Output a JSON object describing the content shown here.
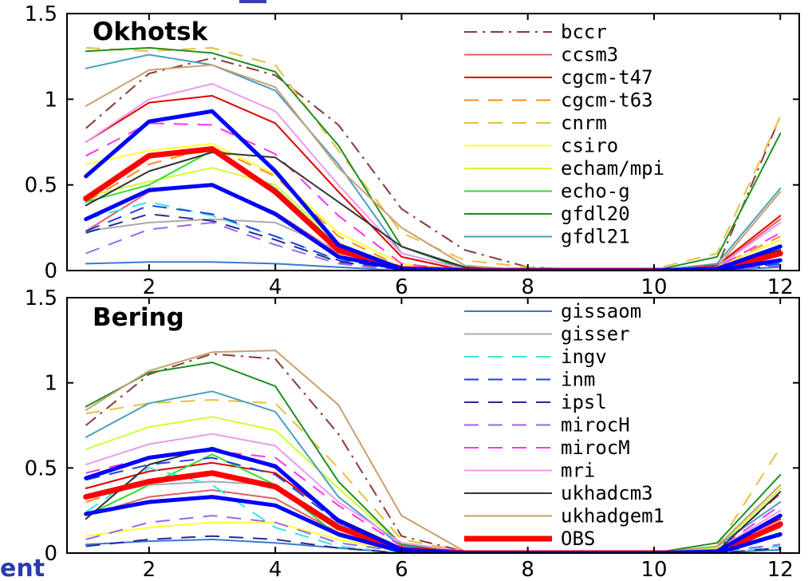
{
  "corner_text": "ent",
  "top_fragment_color": "#3b3fb0",
  "chart_data": [
    {
      "type": "line",
      "title": "Okhotsk",
      "xlabel": "",
      "ylabel": "",
      "xlim": [
        0.7,
        12.3
      ],
      "ylim": [
        0,
        1.5
      ],
      "xticks": [
        2,
        4,
        6,
        8,
        10,
        12
      ],
      "yticks": [
        0,
        0.5,
        1,
        1.5
      ],
      "x": [
        1,
        2,
        3,
        4,
        5,
        6,
        7,
        8,
        9,
        10,
        11,
        12
      ],
      "legend_position": "top-right",
      "series": [
        {
          "name": "bccr",
          "color": "#8b3a3a",
          "dash": "dashdot",
          "width": 2,
          "values": [
            0.83,
            1.15,
            1.24,
            1.14,
            0.85,
            0.36,
            0.12,
            0.02,
            0,
            0,
            0.02,
            0.9
          ]
        },
        {
          "name": "ccsm3",
          "color": "#e06060",
          "dash": "solid",
          "width": 2,
          "values": [
            0.23,
            0.46,
            0.5,
            0.34,
            0.1,
            0.02,
            0,
            0,
            0,
            0,
            0.02,
            0.3
          ]
        },
        {
          "name": "cgcm-t47",
          "color": "#e00000",
          "dash": "solid",
          "width": 2,
          "values": [
            0.75,
            0.98,
            1.02,
            0.86,
            0.46,
            0.08,
            0,
            0,
            0,
            0,
            0.03,
            0.32
          ]
        },
        {
          "name": "cgcm-t63",
          "color": "#ff8c1a",
          "dash": "dashed",
          "width": 2,
          "values": [
            0.4,
            0.62,
            0.72,
            0.55,
            0.2,
            0.02,
            0,
            0,
            0,
            0,
            0.02,
            0.2
          ]
        },
        {
          "name": "cnrm",
          "color": "#e6c040",
          "dash": "dashed",
          "width": 2,
          "values": [
            1.3,
            1.28,
            1.3,
            1.2,
            0.7,
            0.22,
            0.06,
            0.02,
            0,
            0.01,
            0.1,
            0.9
          ]
        },
        {
          "name": "csiro",
          "color": "#ffff33",
          "dash": "solid",
          "width": 2,
          "values": [
            0.62,
            0.7,
            0.74,
            0.56,
            0.22,
            0.04,
            0,
            0,
            0,
            0,
            0.02,
            0.18
          ]
        },
        {
          "name": "echam/mpi",
          "color": "#ccff33",
          "dash": "solid",
          "width": 2,
          "values": [
            0.43,
            0.52,
            0.6,
            0.5,
            0.16,
            0.02,
            0,
            0,
            0,
            0,
            0.01,
            0.15
          ]
        },
        {
          "name": "echo-g",
          "color": "#33dd33",
          "dash": "solid",
          "width": 2,
          "values": [
            0.4,
            0.5,
            0.7,
            0.48,
            0.14,
            0.02,
            0,
            0,
            0,
            0,
            0.01,
            0.12
          ]
        },
        {
          "name": "gfdl20",
          "color": "#1f8f1f",
          "dash": "solid",
          "width": 2,
          "values": [
            1.28,
            1.3,
            1.27,
            1.16,
            0.73,
            0.14,
            0.01,
            0,
            0,
            0,
            0.08,
            0.8
          ]
        },
        {
          "name": "gfdl21",
          "color": "#4a9fbf",
          "dash": "solid",
          "width": 2,
          "values": [
            1.18,
            1.26,
            1.2,
            1.05,
            0.62,
            0.1,
            0.01,
            0,
            0,
            0,
            0.04,
            0.48
          ]
        },
        {
          "name": "gissaom",
          "color": "#3a78d0",
          "dash": "solid",
          "width": 2,
          "values": [
            0.04,
            0.05,
            0.05,
            0.04,
            0.02,
            0,
            0,
            0,
            0,
            0,
            0,
            0.02
          ]
        },
        {
          "name": "gisser",
          "color": "#aaaaaa",
          "dash": "solid",
          "width": 2,
          "values": [
            0.23,
            0.28,
            0.3,
            0.28,
            0.12,
            0.02,
            0,
            0,
            0,
            0,
            0.01,
            0.05
          ]
        },
        {
          "name": "ingv",
          "color": "#33e6e6",
          "dash": "dashed",
          "width": 2,
          "values": [
            0.3,
            0.4,
            0.32,
            0.2,
            0.06,
            0.01,
            0,
            0,
            0,
            0,
            0,
            0.05
          ]
        },
        {
          "name": "inm",
          "color": "#2040e0",
          "dash": "dashed",
          "width": 2,
          "values": [
            0.23,
            0.38,
            0.33,
            0.2,
            0.06,
            0.01,
            0,
            0,
            0,
            0,
            0,
            0.04
          ]
        },
        {
          "name": "ipsl",
          "color": "#2a2a90",
          "dash": "dashed",
          "width": 2,
          "values": [
            0.22,
            0.33,
            0.29,
            0.18,
            0.05,
            0.01,
            0,
            0,
            0,
            0,
            0,
            0.03
          ]
        },
        {
          "name": "mirocH",
          "color": "#9966ee",
          "dash": "dashed",
          "width": 2,
          "values": [
            0.1,
            0.24,
            0.28,
            0.15,
            0.04,
            0,
            0,
            0,
            0,
            0,
            0,
            0.03
          ]
        },
        {
          "name": "mirocM",
          "color": "#ff33ee",
          "dash": "dashed",
          "width": 2,
          "values": [
            0.67,
            0.86,
            0.85,
            0.68,
            0.32,
            0.04,
            0,
            0,
            0,
            0,
            0.02,
            0.22
          ]
        },
        {
          "name": "mri",
          "color": "#ee99ee",
          "dash": "solid",
          "width": 2,
          "values": [
            0.75,
            1.0,
            1.09,
            0.93,
            0.5,
            0.1,
            0.01,
            0,
            0,
            0,
            0.02,
            0.28
          ]
        },
        {
          "name": "ukhadcm3",
          "color": "#333333",
          "dash": "solid",
          "width": 2,
          "values": [
            0.38,
            0.58,
            0.69,
            0.66,
            0.4,
            0.14,
            0.02,
            0,
            0,
            0,
            0.01,
            0.12
          ]
        },
        {
          "name": "ukhadgem1",
          "color": "#c9a070",
          "dash": "solid",
          "width": 2,
          "values": [
            0.96,
            1.17,
            1.2,
            1.07,
            0.6,
            0.25,
            0.03,
            0,
            0,
            0,
            0.02,
            0.46
          ]
        },
        {
          "name": "OBS",
          "color": "#ff0000",
          "dash": "solid",
          "width": 7,
          "values": [
            0.42,
            0.67,
            0.71,
            0.46,
            0.12,
            0.01,
            0,
            0,
            0,
            0,
            0,
            0.1
          ]
        },
        {
          "name": "",
          "color": "#0000ff",
          "dash": "solid",
          "width": 5,
          "values": [
            0.55,
            0.87,
            0.93,
            0.58,
            0.15,
            0.01,
            0,
            0,
            0,
            0,
            0.01,
            0.14
          ]
        },
        {
          "name": "",
          "color": "#0000ff",
          "dash": "solid",
          "width": 5,
          "values": [
            0.3,
            0.47,
            0.5,
            0.33,
            0.08,
            0.01,
            0,
            0,
            0,
            0,
            0,
            0.06
          ]
        }
      ],
      "legend_entries": [
        "bccr",
        "ccsm3",
        "cgcm-t47",
        "cgcm-t63",
        "cnrm",
        "csiro",
        "echam/mpi",
        "echo-g",
        "gfdl20",
        "gfdl21"
      ]
    },
    {
      "type": "line",
      "title": "Bering",
      "xlabel": "",
      "ylabel": "",
      "xlim": [
        0.7,
        12.3
      ],
      "ylim": [
        0,
        1.5
      ],
      "xticks": [
        2,
        4,
        6,
        8,
        10,
        12
      ],
      "yticks": [
        0,
        0.5,
        1,
        1.5
      ],
      "x": [
        1,
        2,
        3,
        4,
        5,
        6,
        7,
        8,
        9,
        10,
        11,
        12
      ],
      "legend_position": "top-right",
      "series": [
        {
          "name": "bccr",
          "color": "#8b3a3a",
          "dash": "dashdot",
          "width": 2,
          "values": [
            0.75,
            1.05,
            1.17,
            1.14,
            0.7,
            0.1,
            0.01,
            0,
            0,
            0,
            0.02,
            0.35
          ]
        },
        {
          "name": "ccsm3",
          "color": "#e06060",
          "dash": "solid",
          "width": 2,
          "values": [
            0.22,
            0.33,
            0.37,
            0.32,
            0.12,
            0.02,
            0,
            0,
            0,
            0,
            0.01,
            0.15
          ]
        },
        {
          "name": "cgcm-t47",
          "color": "#e00000",
          "dash": "solid",
          "width": 2,
          "values": [
            0.38,
            0.48,
            0.53,
            0.47,
            0.2,
            0.03,
            0,
            0,
            0,
            0,
            0.02,
            0.2
          ]
        },
        {
          "name": "cgcm-t63",
          "color": "#ff8c1a",
          "dash": "dashed",
          "width": 2,
          "values": [
            0.3,
            0.42,
            0.47,
            0.4,
            0.15,
            0.02,
            0,
            0,
            0,
            0,
            0.01,
            0.18
          ]
        },
        {
          "name": "cnrm",
          "color": "#e6c040",
          "dash": "dashed",
          "width": 2,
          "values": [
            0.82,
            0.88,
            0.9,
            0.88,
            0.5,
            0.08,
            0.01,
            0,
            0,
            0,
            0.04,
            0.62
          ]
        },
        {
          "name": "csiro",
          "color": "#ffff33",
          "dash": "solid",
          "width": 2,
          "values": [
            0.1,
            0.15,
            0.18,
            0.18,
            0.08,
            0.01,
            0,
            0,
            0,
            0,
            0.01,
            0.1
          ]
        },
        {
          "name": "echam/mpi",
          "color": "#ccff33",
          "dash": "solid",
          "width": 2,
          "values": [
            0.61,
            0.74,
            0.8,
            0.72,
            0.38,
            0.05,
            0,
            0,
            0,
            0,
            0.03,
            0.38
          ]
        },
        {
          "name": "echo-g",
          "color": "#33dd33",
          "dash": "solid",
          "width": 2,
          "values": [
            0.22,
            0.4,
            0.58,
            0.4,
            0.1,
            0.01,
            0,
            0,
            0,
            0,
            0.01,
            0.12
          ]
        },
        {
          "name": "gfdl20",
          "color": "#1f8f1f",
          "dash": "solid",
          "width": 2,
          "values": [
            0.86,
            1.06,
            1.12,
            0.98,
            0.42,
            0.05,
            0,
            0,
            0,
            0,
            0.06,
            0.46
          ]
        },
        {
          "name": "gfdl21",
          "color": "#4a9fbf",
          "dash": "solid",
          "width": 2,
          "values": [
            0.68,
            0.88,
            0.95,
            0.83,
            0.33,
            0.04,
            0,
            0,
            0,
            0,
            0.04,
            0.3
          ]
        },
        {
          "name": "gissaom",
          "color": "#3a78d0",
          "dash": "solid",
          "width": 2,
          "values": [
            0.05,
            0.07,
            0.08,
            0.06,
            0.03,
            0,
            0,
            0,
            0,
            0,
            0,
            0.02
          ]
        },
        {
          "name": "gisser",
          "color": "#aaaaaa",
          "dash": "solid",
          "width": 2,
          "values": [
            0.33,
            0.4,
            0.42,
            0.4,
            0.17,
            0.02,
            0,
            0,
            0,
            0,
            0.01,
            0.1
          ]
        },
        {
          "name": "ingv",
          "color": "#33e6e6",
          "dash": "dashed",
          "width": 2,
          "values": [
            0.24,
            0.5,
            0.4,
            0.15,
            0.04,
            0,
            0,
            0,
            0,
            0,
            0,
            0.04
          ]
        },
        {
          "name": "inm",
          "color": "#2040e0",
          "dash": "dashed",
          "width": 2,
          "values": [
            0.43,
            0.52,
            0.56,
            0.46,
            0.18,
            0.02,
            0,
            0,
            0,
            0,
            0.01,
            0.16
          ]
        },
        {
          "name": "ipsl",
          "color": "#2a2a90",
          "dash": "dashed",
          "width": 2,
          "values": [
            0.04,
            0.08,
            0.1,
            0.08,
            0.03,
            0,
            0,
            0,
            0,
            0,
            0,
            0.03
          ]
        },
        {
          "name": "mirocH",
          "color": "#9966ee",
          "dash": "dashed",
          "width": 2,
          "values": [
            0.08,
            0.18,
            0.22,
            0.18,
            0.06,
            0.01,
            0,
            0,
            0,
            0,
            0.01,
            0.05
          ]
        },
        {
          "name": "mirocM",
          "color": "#ff33ee",
          "dash": "dashed",
          "width": 2,
          "values": [
            0.47,
            0.56,
            0.6,
            0.56,
            0.28,
            0.04,
            0,
            0,
            0,
            0,
            0.02,
            0.28
          ]
        },
        {
          "name": "mri",
          "color": "#ee99ee",
          "dash": "solid",
          "width": 2,
          "values": [
            0.52,
            0.64,
            0.7,
            0.63,
            0.3,
            0.06,
            0.01,
            0,
            0,
            0,
            0.02,
            0.25
          ]
        },
        {
          "name": "ukhadcm3",
          "color": "#333333",
          "dash": "solid",
          "width": 2,
          "values": [
            0.2,
            0.52,
            0.62,
            0.5,
            0.2,
            0.03,
            0,
            0,
            0,
            0,
            0.01,
            0.36
          ]
        },
        {
          "name": "ukhadgem1",
          "color": "#c9a070",
          "dash": "solid",
          "width": 2,
          "values": [
            0.84,
            1.07,
            1.18,
            1.19,
            0.87,
            0.22,
            0.01,
            0,
            0,
            0,
            0.04,
            0.4
          ]
        },
        {
          "name": "OBS",
          "color": "#ff0000",
          "dash": "solid",
          "width": 7,
          "values": [
            0.33,
            0.42,
            0.47,
            0.39,
            0.15,
            0.02,
            0,
            0,
            0,
            0,
            0,
            0.17
          ]
        },
        {
          "name": "",
          "color": "#0000ff",
          "dash": "solid",
          "width": 5,
          "values": [
            0.44,
            0.56,
            0.61,
            0.51,
            0.19,
            0.02,
            0,
            0,
            0,
            0,
            0.01,
            0.22
          ]
        },
        {
          "name": "",
          "color": "#0000ff",
          "dash": "solid",
          "width": 5,
          "values": [
            0.23,
            0.3,
            0.33,
            0.28,
            0.11,
            0.01,
            0,
            0,
            0,
            0,
            0,
            0.11
          ]
        }
      ],
      "legend_entries": [
        "gissaom",
        "gisser",
        "ingv",
        "inm",
        "ipsl",
        "mirocH",
        "mirocM",
        "mri",
        "ukhadcm3",
        "ukhadgem1",
        "OBS"
      ]
    }
  ]
}
